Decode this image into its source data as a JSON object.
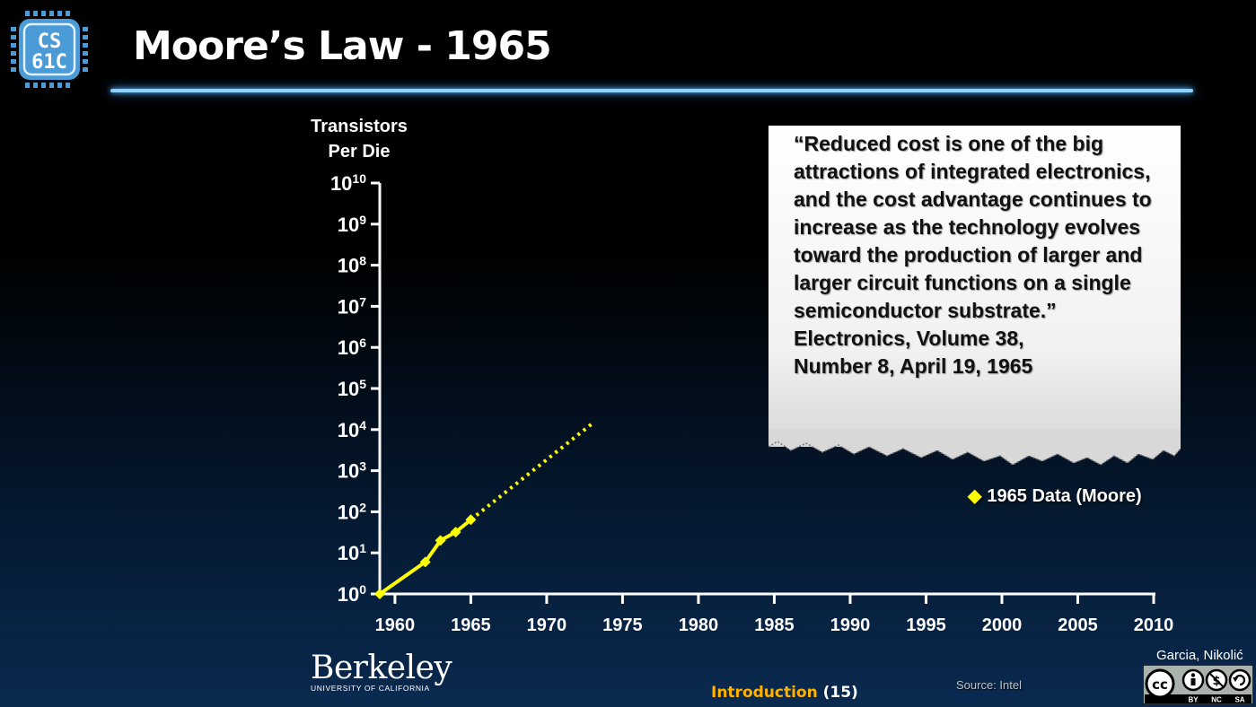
{
  "logo": {
    "line1": "CS",
    "line2": "61C"
  },
  "slide_title": "Moore’s Law - 1965",
  "chart_data": {
    "type": "line",
    "ylabel_lines": [
      "Transistors",
      "Per Die"
    ],
    "xlabel": "",
    "y_scale": "log10",
    "ylim": [
      1,
      10000000000
    ],
    "y_ticks": [
      {
        "base": "10",
        "exp": "0",
        "value": 1
      },
      {
        "base": "10",
        "exp": "1",
        "value": 10
      },
      {
        "base": "10",
        "exp": "2",
        "value": 100
      },
      {
        "base": "10",
        "exp": "3",
        "value": 1000
      },
      {
        "base": "10",
        "exp": "4",
        "value": 10000
      },
      {
        "base": "10",
        "exp": "5",
        "value": 100000
      },
      {
        "base": "10",
        "exp": "6",
        "value": 1000000
      },
      {
        "base": "10",
        "exp": "7",
        "value": 10000000
      },
      {
        "base": "10",
        "exp": "8",
        "value": 100000000
      },
      {
        "base": "10",
        "exp": "9",
        "value": 1000000000
      },
      {
        "base": "10",
        "exp": "10",
        "value": 10000000000
      }
    ],
    "x_ticks": [
      1960,
      1965,
      1970,
      1975,
      1980,
      1985,
      1990,
      1995,
      2000,
      2005,
      2010
    ],
    "grid": false,
    "series": [
      {
        "name": "1965 Data (Moore)",
        "color": "#ffff00",
        "marker": "diamond",
        "x": [
          1959,
          1962,
          1963,
          1964,
          1965
        ],
        "y": [
          1,
          6,
          20,
          32,
          64
        ]
      },
      {
        "style": "dotted",
        "color": "#ffff00",
        "x": [
          1965,
          1973
        ],
        "y": [
          64,
          14000
        ]
      }
    ],
    "legend_position": "right"
  },
  "quote": {
    "text": "“Reduced cost is one of the big attractions of integrated electronics, and the cost advantage continues to increase as the technology evolves toward the production of larger and larger circuit functions on a single semiconductor substrate.”",
    "citation_line1": "Electronics, Volume 38,",
    "citation_line2": "Number 8, April 19, 1965"
  },
  "berkeley": {
    "wordmark": "Berkeley",
    "subline": "UNIVERSITY OF CALIFORNIA"
  },
  "footer": {
    "section": "Introduction",
    "page": "(15)"
  },
  "source": "Source: Intel",
  "authors": "Garcia, Nikolić",
  "license": {
    "by": "BY",
    "nc": "NC",
    "sa": "SA"
  },
  "colors": {
    "accent_line": "#8fd0ff",
    "data": "#ffff00",
    "footer_section": "#ffb100",
    "logo": "#4a9bd6"
  }
}
